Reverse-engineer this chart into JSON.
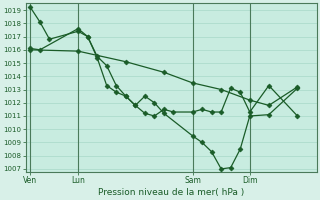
{
  "xlabel": "Pression niveau de la mer( hPa )",
  "bg_color": "#d8f0e8",
  "plot_bg_color": "#c8ece0",
  "grid_color": "#a8d8c8",
  "line_color": "#1a5c28",
  "day_line_color": "#4a7a5a",
  "ylim_min": 1006.8,
  "ylim_max": 1019.5,
  "xlim_min": -1,
  "xlim_max": 60,
  "ytick_values": [
    1007,
    1008,
    1009,
    1010,
    1011,
    1012,
    1013,
    1014,
    1015,
    1016,
    1017,
    1018,
    1019
  ],
  "xtick_labels": [
    "Ven",
    "Lun",
    "Sam",
    "Dim"
  ],
  "xtick_positions": [
    0,
    10,
    34,
    46
  ],
  "day_vlines": [
    0,
    10,
    34,
    46
  ],
  "series1_x": [
    0,
    2,
    4,
    10,
    12,
    14,
    16,
    18,
    20,
    22,
    24,
    26,
    28,
    34,
    36,
    38,
    40,
    42,
    44,
    46,
    50,
    56
  ],
  "series1_y": [
    1019.2,
    1018.1,
    1016.8,
    1017.4,
    1017.0,
    1015.5,
    1014.8,
    1013.3,
    1012.5,
    1011.8,
    1012.5,
    1012.0,
    1011.2,
    1009.5,
    1009.0,
    1008.3,
    1007.0,
    1007.1,
    1008.5,
    1011.0,
    1011.1,
    1013.1
  ],
  "series2_x": [
    0,
    10,
    20,
    28,
    34,
    40,
    46,
    50,
    56
  ],
  "series2_y": [
    1016.0,
    1015.9,
    1015.1,
    1014.3,
    1013.5,
    1013.0,
    1012.2,
    1011.8,
    1013.2
  ],
  "series3_x": [
    0,
    2,
    10,
    12,
    14,
    16,
    18,
    20,
    22,
    24,
    26,
    28,
    30,
    34,
    36,
    38,
    40,
    42,
    44,
    46,
    50,
    56
  ],
  "series3_y": [
    1016.1,
    1016.0,
    1017.6,
    1017.0,
    1015.4,
    1013.3,
    1012.8,
    1012.5,
    1011.8,
    1011.2,
    1011.0,
    1011.5,
    1011.3,
    1011.3,
    1011.5,
    1011.3,
    1011.3,
    1013.1,
    1012.8,
    1011.3,
    1013.3,
    1011.0
  ],
  "ytick_fontsize": 5,
  "xtick_fontsize": 5.5,
  "xlabel_fontsize": 6.5
}
